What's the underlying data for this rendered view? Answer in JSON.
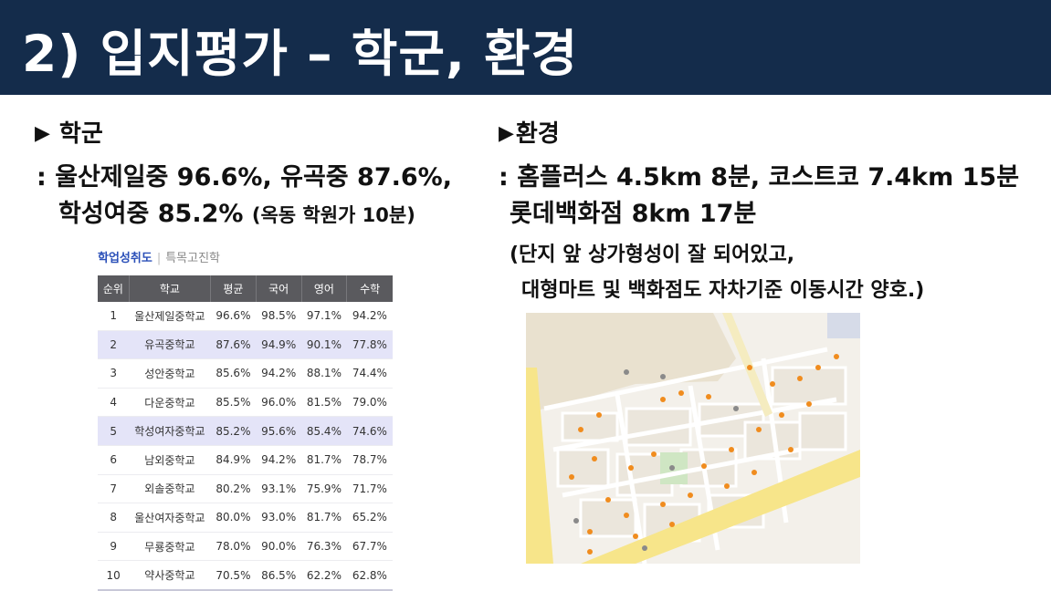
{
  "header": {
    "title": "2) 입지평가 – 학군, 환경"
  },
  "school": {
    "heading": "학군",
    "line1": ": 울산제일중 96.6%, 유곡중 87.6%,",
    "line2_main": "학성여중 85.2%",
    "line2_paren": "(옥동 학원가 10분)"
  },
  "env": {
    "heading": "환경",
    "line1": ": 홈플러스 4.5km 8분, 코스트코 7.4km 15분",
    "line2": "롯데백화점 8km 17분",
    "note1": "(단지 앞 상가형성이 잘 되어있고,",
    "note2": "대형마트 및 백화점도 자차기준 이동시간 양호.)"
  },
  "table": {
    "tab_active": "학업성취도",
    "tab_separator": "|",
    "tab_inactive": "특목고진학",
    "columns": [
      "순위",
      "학교",
      "평균",
      "국어",
      "영어",
      "수학"
    ],
    "rows": [
      [
        "1",
        "울산제일중학교",
        "96.6%",
        "98.5%",
        "97.1%",
        "94.2%"
      ],
      [
        "2",
        "유곡중학교",
        "87.6%",
        "94.9%",
        "90.1%",
        "77.8%"
      ],
      [
        "3",
        "성안중학교",
        "85.6%",
        "94.2%",
        "88.1%",
        "74.4%"
      ],
      [
        "4",
        "다운중학교",
        "85.5%",
        "96.0%",
        "81.5%",
        "79.0%"
      ],
      [
        "5",
        "학성여자중학교",
        "85.2%",
        "95.6%",
        "85.4%",
        "74.6%"
      ],
      [
        "6",
        "남외중학교",
        "84.9%",
        "94.2%",
        "81.7%",
        "78.7%"
      ],
      [
        "7",
        "외솔중학교",
        "80.2%",
        "93.1%",
        "75.9%",
        "71.7%"
      ],
      [
        "8",
        "울산여자중학교",
        "80.0%",
        "93.0%",
        "81.7%",
        "65.2%"
      ],
      [
        "9",
        "무룡중학교",
        "78.0%",
        "90.0%",
        "76.3%",
        "67.7%"
      ],
      [
        "10",
        "약사중학교",
        "70.5%",
        "86.5%",
        "62.2%",
        "62.8%"
      ]
    ],
    "highlight_rows": [
      2,
      5
    ],
    "highlight_color": "#e4e4f8"
  },
  "map": {
    "image": "street-map"
  },
  "colors": {
    "header_bg": "#142c4b",
    "header_text": "#ffffff",
    "road_yellow": "#f7e58a",
    "poi_orange": "#f08c1e"
  }
}
